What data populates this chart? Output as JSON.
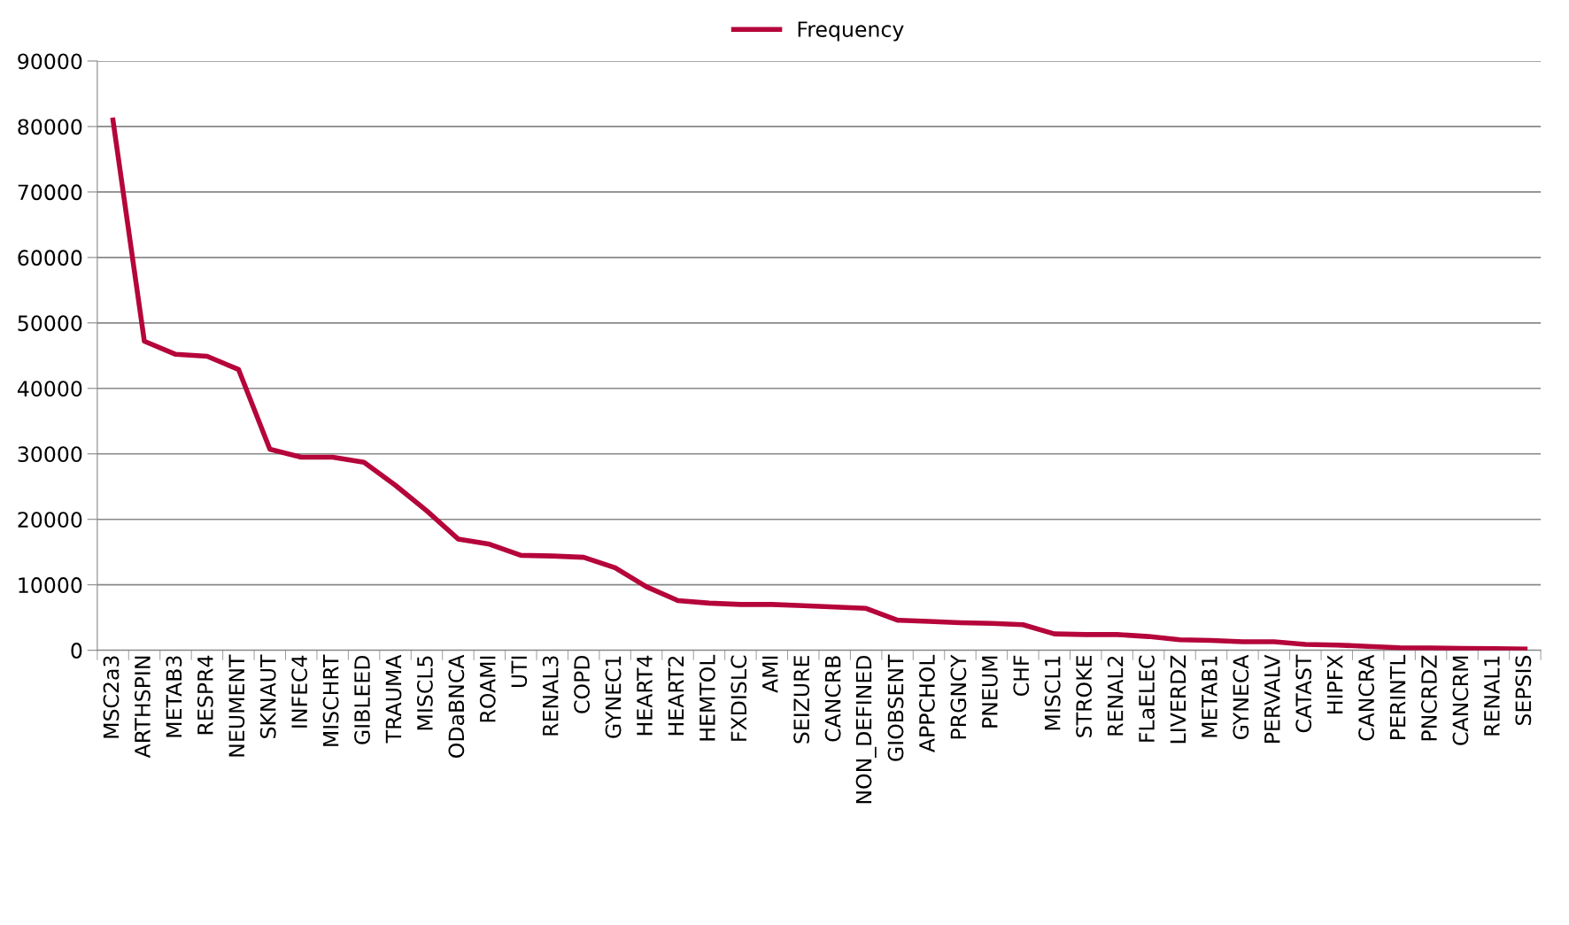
{
  "chart_data": {
    "type": "line",
    "categories": [
      "MSC2a3",
      "ARTHSPIN",
      "METAB3",
      "RESPR4",
      "NEUMENT",
      "SKNAUT",
      "INFEC4",
      "MISCHRT",
      "GIBLEED",
      "TRAUMA",
      "MISCL5",
      "ODaBNCA",
      "ROAMI",
      "UTI",
      "RENAL3",
      "COPD",
      "GYNEC1",
      "HEART4",
      "HEART2",
      "HEMTOL",
      "FXDISLC",
      "AMI",
      "SEIZURE",
      "CANCRB",
      "NON_DEFINED",
      "GIOBSENT",
      "APPCHOL",
      "PRGNCY",
      "PNEUM",
      "CHF",
      "MISCL1",
      "STROKE",
      "RENAL2",
      "FLaELEC",
      "LIVERDZ",
      "METAB1",
      "GYNECA",
      "PERVALV",
      "CATAST",
      "HIPFX",
      "CANCRA",
      "PERINTL",
      "PNCRDZ",
      "CANCRM",
      "RENAL1",
      "SEPSIS"
    ],
    "series": [
      {
        "name": "Frequency",
        "color": "#b5053a",
        "values": [
          81000,
          47200,
          45200,
          44900,
          42900,
          30700,
          29500,
          29500,
          28700,
          25200,
          21300,
          17000,
          16200,
          14500,
          14400,
          14200,
          12600,
          9700,
          7600,
          7200,
          7000,
          7000,
          6800,
          6600,
          6400,
          4600,
          4400,
          4200,
          4100,
          3900,
          2500,
          2400,
          2400,
          2100,
          1600,
          1500,
          1300,
          1300,
          900,
          800,
          600,
          400,
          350,
          300,
          250,
          200
        ]
      }
    ],
    "ylim": [
      0,
      90000
    ],
    "yticks": [
      0,
      10000,
      20000,
      30000,
      40000,
      50000,
      60000,
      70000,
      80000,
      90000
    ],
    "grid": "y",
    "legend": "top",
    "marker": "none",
    "line_style": "solid"
  }
}
